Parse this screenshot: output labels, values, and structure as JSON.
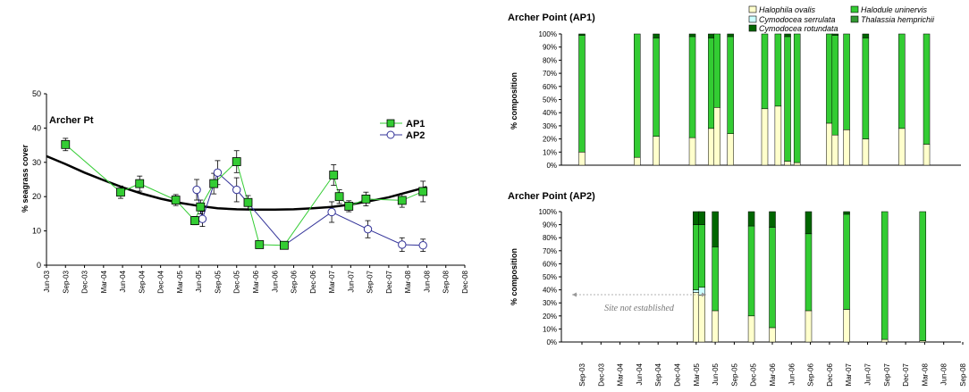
{
  "chart_data": [
    {
      "type": "line",
      "title": "Archer Pt",
      "ylabel": "% seagrass cover",
      "ylim": [
        0,
        50
      ],
      "yticks": [
        0,
        10,
        20,
        30,
        40,
        50
      ],
      "xticks": [
        "Jun-03",
        "Sep-03",
        "Dec-03",
        "Mar-04",
        "Jun-04",
        "Sep-04",
        "Dec-04",
        "Mar-05",
        "Jun-05",
        "Sep-05",
        "Dec-05",
        "Mar-06",
        "Jun-06",
        "Sep-06",
        "Dec-06",
        "Mar-07",
        "Jun-07",
        "Sep-07",
        "Dec-07",
        "Mar-08",
        "Jun-08",
        "Sep-08",
        "Dec-08"
      ],
      "legend": [
        "AP1",
        "AP2"
      ],
      "series": [
        {
          "name": "AP1",
          "color": "#33cc33",
          "points": [
            [
              1.0,
              35.2,
              1.8
            ],
            [
              3.9,
              21.3,
              1.8
            ],
            [
              4.9,
              23.8,
              2.2
            ],
            [
              6.8,
              19.0,
              1.6
            ],
            [
              7.8,
              13.0,
              1.2
            ],
            [
              8.1,
              17.0,
              2.0
            ],
            [
              8.8,
              23.8,
              3.0
            ],
            [
              10.0,
              30.2,
              3.2
            ],
            [
              10.6,
              18.3,
              2.0
            ],
            [
              11.2,
              6.0,
              0.8
            ],
            [
              12.5,
              5.8,
              0.8
            ],
            [
              15.1,
              26.3,
              3.0
            ],
            [
              15.4,
              20.0,
              2.0
            ],
            [
              15.9,
              17.2,
              1.6
            ],
            [
              16.8,
              19.3,
              2.0
            ],
            [
              18.7,
              18.9,
              2.0
            ],
            [
              19.8,
              21.5,
              3.0
            ]
          ]
        },
        {
          "name": "AP2",
          "color": "#ffffff",
          "points": [
            [
              7.9,
              22.0,
              3.0
            ],
            [
              8.2,
              13.5,
              2.2
            ],
            [
              9.0,
              27.0,
              3.5
            ],
            [
              10.0,
              22.0,
              3.5
            ],
            [
              12.5,
              5.8,
              0.8
            ],
            [
              15.0,
              15.5,
              3.0
            ],
            [
              16.9,
              10.5,
              2.5
            ],
            [
              18.7,
              6.0,
              2.0
            ],
            [
              19.8,
              5.8,
              1.8
            ]
          ]
        }
      ],
      "trend": [
        [
          0.0,
          31.8
        ],
        [
          1.0,
          29.5
        ],
        [
          2.0,
          27.0
        ],
        [
          3.0,
          24.8
        ],
        [
          4.0,
          22.7
        ],
        [
          5.0,
          20.9
        ],
        [
          6.0,
          19.4
        ],
        [
          7.0,
          18.2
        ],
        [
          8.0,
          17.3
        ],
        [
          9.0,
          16.6
        ],
        [
          10.0,
          16.3
        ],
        [
          11.0,
          16.2
        ],
        [
          12.0,
          16.2
        ],
        [
          13.0,
          16.3
        ],
        [
          14.0,
          16.6
        ],
        [
          15.0,
          17.0
        ],
        [
          16.0,
          17.7
        ],
        [
          17.0,
          18.7
        ],
        [
          18.0,
          19.8
        ],
        [
          19.0,
          21.3
        ],
        [
          20.0,
          22.8
        ]
      ]
    },
    {
      "type": "bar",
      "title": "Archer Point (AP1)",
      "ylabel": "% composition",
      "yticks": [
        "0%",
        "10%",
        "20%",
        "30%",
        "40%",
        "50%",
        "60%",
        "70%",
        "80%",
        "90%",
        "100%"
      ],
      "legend": [
        "Halophila ovalis",
        "Halodule uninervis",
        "Cymodocea serrulata",
        "Thalassia hemprichii",
        "Cymodocea rotundata"
      ],
      "colors": {
        "Halophila ovalis": "#ffffcc",
        "Halodule uninervis": "#33cc33",
        "Cymodocea serrulata": "#ccffff",
        "Thalassia hemprichii": "#339933",
        "Cymodocea rotundata": "#006600"
      },
      "bars": [
        {
          "x": 1.0,
          "Halophila ovalis": 10,
          "Halodule uninervis": 89,
          "Cymodocea rotundata": 1
        },
        {
          "x": 3.9,
          "Halophila ovalis": 6,
          "Halodule uninervis": 94
        },
        {
          "x": 4.9,
          "Halophila ovalis": 22,
          "Halodule uninervis": 75,
          "Cymodocea rotundata": 3
        },
        {
          "x": 6.8,
          "Halophila ovalis": 21,
          "Halodule uninervis": 77,
          "Cymodocea rotundata": 2
        },
        {
          "x": 7.8,
          "Halophila ovalis": 28,
          "Halodule uninervis": 69,
          "Cymodocea rotundata": 3
        },
        {
          "x": 8.1,
          "Halophila ovalis": 44,
          "Halodule uninervis": 56
        },
        {
          "x": 8.8,
          "Halophila ovalis": 24,
          "Halodule uninervis": 74,
          "Cymodocea rotundata": 2
        },
        {
          "x": 10.6,
          "Halophila ovalis": 43,
          "Halodule uninervis": 57
        },
        {
          "x": 11.3,
          "Halophila ovalis": 45,
          "Halodule uninervis": 55
        },
        {
          "x": 11.8,
          "Halophila ovalis": 3,
          "Halodule uninervis": 95,
          "Cymodocea rotundata": 2
        },
        {
          "x": 12.3,
          "Halophila ovalis": 2,
          "Halodule uninervis": 98
        },
        {
          "x": 14.0,
          "Halophila ovalis": 32,
          "Halodule uninervis": 68
        },
        {
          "x": 14.3,
          "Halophila ovalis": 23,
          "Halodule uninervis": 76,
          "Cymodocea rotundata": 1
        },
        {
          "x": 14.9,
          "Halophila ovalis": 27,
          "Halodule uninervis": 73
        },
        {
          "x": 15.9,
          "Halophila ovalis": 20,
          "Halodule uninervis": 77,
          "Cymodocea rotundata": 3
        },
        {
          "x": 17.8,
          "Halophila ovalis": 28,
          "Halodule uninervis": 72
        },
        {
          "x": 19.1,
          "Halophila ovalis": 16,
          "Halodule uninervis": 84
        }
      ]
    },
    {
      "type": "bar",
      "title": "Archer Point (AP2)",
      "ylabel": "% composition",
      "yticks": [
        "0%",
        "10%",
        "20%",
        "30%",
        "40%",
        "50%",
        "60%",
        "70%",
        "80%",
        "90%",
        "100%"
      ],
      "xticks": [
        "Sep-03",
        "Dec-03",
        "Mar-04",
        "Jun-04",
        "Sep-04",
        "Dec-04",
        "Mar-05",
        "Jun-05",
        "Sep-05",
        "Dec-05",
        "Mar-06",
        "Jun-06",
        "Sep-06",
        "Dec-06",
        "Mar-07",
        "Jun-07",
        "Sep-07",
        "Dec-07",
        "Mar-08",
        "Jun-08",
        "Sep-08",
        "Dec-08"
      ],
      "annotation": "Site not established",
      "bars": [
        {
          "x": 7.0,
          "Halophila ovalis": 38,
          "Halodule uninervis": 50,
          "Cymodocea serrulata": 2,
          "Cymodocea rotundata": 10
        },
        {
          "x": 7.3,
          "Halophila ovalis": 36,
          "Halodule uninervis": 48,
          "Cymodocea serrulata": 6,
          "Cymodocea rotundata": 10
        },
        {
          "x": 8.0,
          "Halophila ovalis": 24,
          "Halodule uninervis": 49,
          "Cymodocea rotundata": 27
        },
        {
          "x": 9.9,
          "Halophila ovalis": 20,
          "Halodule uninervis": 69,
          "Cymodocea rotundata": 11
        },
        {
          "x": 11.0,
          "Halophila ovalis": 11,
          "Halodule uninervis": 77,
          "Cymodocea rotundata": 12
        },
        {
          "x": 12.9,
          "Halophila ovalis": 24,
          "Halodule uninervis": 59,
          "Cymodocea rotundata": 17
        },
        {
          "x": 14.9,
          "Halophila ovalis": 25,
          "Halodule uninervis": 73,
          "Cymodocea rotundata": 2
        },
        {
          "x": 16.9,
          "Halophila ovalis": 2,
          "Halodule uninervis": 98
        },
        {
          "x": 18.9,
          "Halophila ovalis": 1,
          "Halodule uninervis": 99
        }
      ]
    }
  ]
}
